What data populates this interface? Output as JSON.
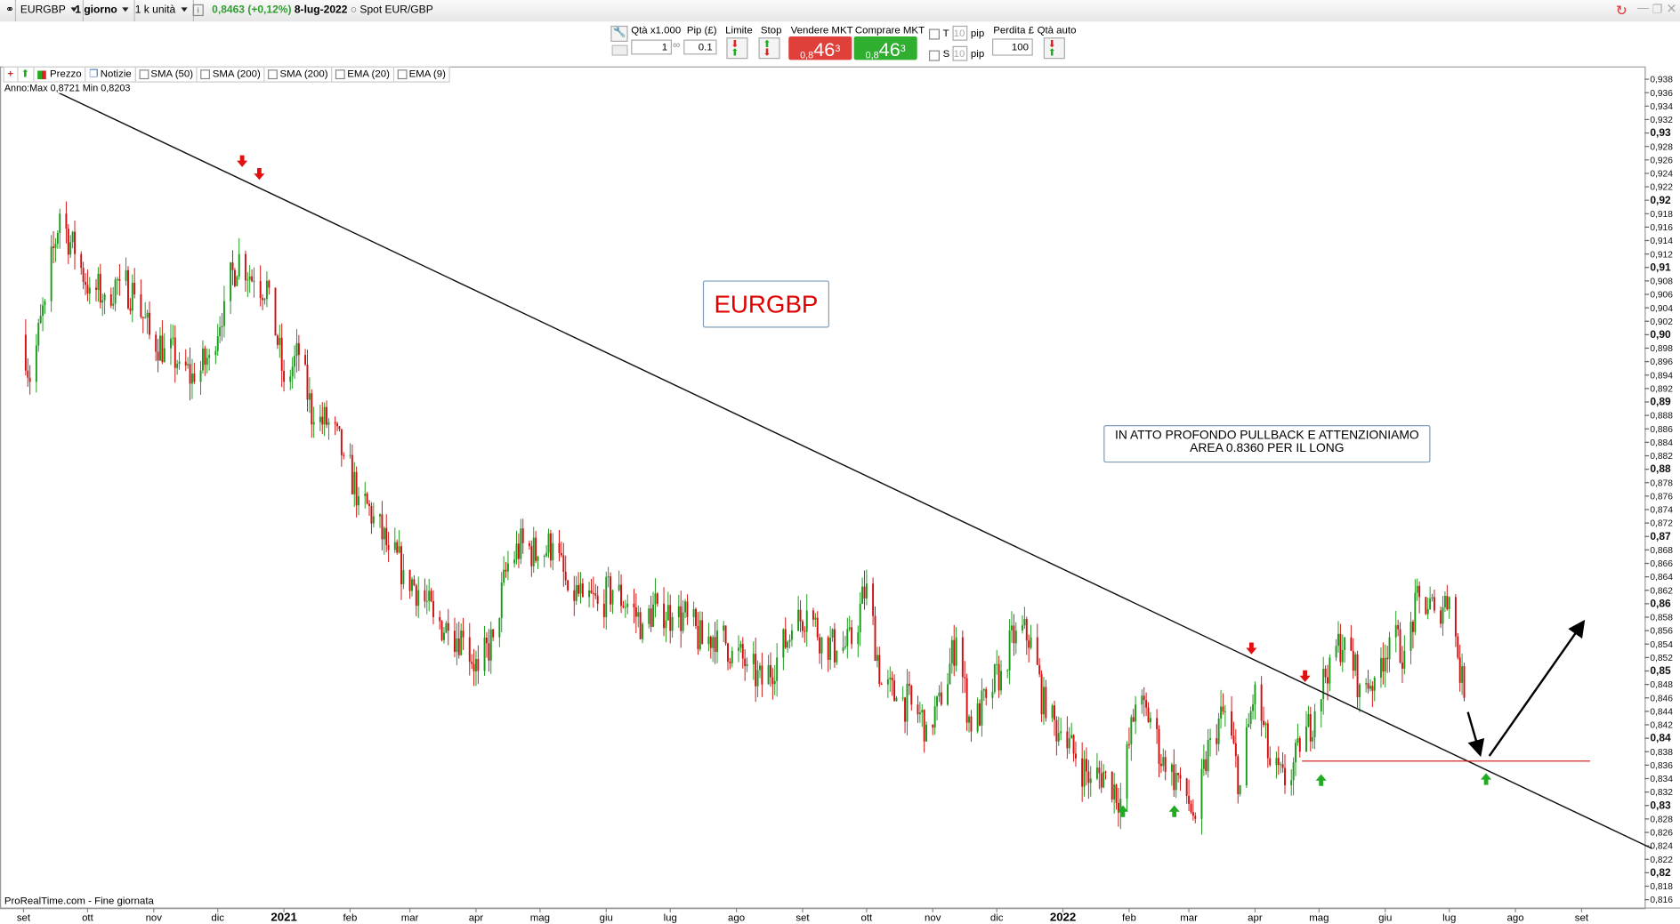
{
  "topbar": {
    "symbol": "EURGBP",
    "timeframe": "1 giorno",
    "units": "1 k unità",
    "last_price": "0,8463 (+0,12%)",
    "date": "8-lug-2022",
    "instrument": "Spot EUR/GBP",
    "price_color": "#2e9e2e"
  },
  "order_panel": {
    "qty_label": "Qtà x1.000",
    "qty_value": "1",
    "pip_label": "Pip (£)",
    "pip_value": "0.1",
    "limit_label": "Limite",
    "stop_label": "Stop",
    "sell_label": "Vendere MKT",
    "buy_label": "Comprare MKT",
    "sell_price": {
      "prefix": "0,8",
      "big": "46",
      "sup": "3"
    },
    "buy_price": {
      "prefix": "0,8",
      "big": "46",
      "sup": "3"
    },
    "t_label": "T",
    "t_value": "10",
    "t_unit": "pip",
    "s_label": "S",
    "s_value": "10",
    "s_unit": "pip",
    "loss_label": "Perdita £",
    "loss_value": "100",
    "auto_qty_label": "Qtà auto",
    "sell_color": "#e0403a",
    "buy_color": "#2fae2f"
  },
  "indicators": [
    {
      "label": "Prezzo"
    },
    {
      "label": "Notizie"
    },
    {
      "label": "SMA (50)"
    },
    {
      "label": "SMA (200)"
    },
    {
      "label": "SMA (200)"
    },
    {
      "label": "EMA (20)"
    },
    {
      "label": "EMA (9)"
    }
  ],
  "year_range": "Anno:Max 0,8721 Min 0,8203",
  "footer_source": "ProRealTime.com - Fine giornata",
  "annotations": {
    "title": "EURGBP",
    "comment_line1": "IN ATTO PROFONDO PULLBACK E ATTENZIONIAMO",
    "comment_line2": "AREA 0.8360 PER IL LONG",
    "support_level": 0.8366,
    "title_color": "#e00000"
  },
  "chart_data": {
    "type": "candlestick",
    "ylim": [
      0.816,
      0.94
    ],
    "y_tick_step": 0.002,
    "x_tick_labels": [
      {
        "date": "2020-09-01",
        "label": "set"
      },
      {
        "date": "2020-10-01",
        "label": "ott"
      },
      {
        "date": "2020-11-01",
        "label": "nov"
      },
      {
        "date": "2020-12-01",
        "label": "dic"
      },
      {
        "date": "2021-01-01",
        "label": "2021",
        "bold": true
      },
      {
        "date": "2021-02-01",
        "label": "feb"
      },
      {
        "date": "2021-03-01",
        "label": "mar"
      },
      {
        "date": "2021-04-01",
        "label": "apr"
      },
      {
        "date": "2021-05-01",
        "label": "mag"
      },
      {
        "date": "2021-06-01",
        "label": "giu"
      },
      {
        "date": "2021-07-01",
        "label": "lug"
      },
      {
        "date": "2021-08-01",
        "label": "ago"
      },
      {
        "date": "2021-09-01",
        "label": "set"
      },
      {
        "date": "2021-10-01",
        "label": "ott"
      },
      {
        "date": "2021-11-01",
        "label": "nov"
      },
      {
        "date": "2021-12-01",
        "label": "dic"
      },
      {
        "date": "2022-01-01",
        "label": "2022",
        "bold": true
      },
      {
        "date": "2022-02-01",
        "label": "feb"
      },
      {
        "date": "2022-03-01",
        "label": "mar"
      },
      {
        "date": "2022-04-01",
        "label": "apr"
      },
      {
        "date": "2022-05-01",
        "label": "mag"
      },
      {
        "date": "2022-06-01",
        "label": "giu"
      },
      {
        "date": "2022-07-01",
        "label": "lug"
      },
      {
        "date": "2022-08-01",
        "label": "ago"
      },
      {
        "date": "2022-09-01",
        "label": "set"
      }
    ],
    "up_color": "#1a9a1a",
    "down_color": "#d01010",
    "weekly_closes": [
      [
        "2020-09-01",
        0.9
      ],
      [
        "2020-09-04",
        0.893
      ],
      [
        "2020-09-11",
        0.905
      ],
      [
        "2020-09-18",
        0.918
      ],
      [
        "2020-09-25",
        0.912
      ],
      [
        "2020-10-02",
        0.907
      ],
      [
        "2020-10-09",
        0.906
      ],
      [
        "2020-10-16",
        0.908
      ],
      [
        "2020-10-23",
        0.906
      ],
      [
        "2020-10-30",
        0.9
      ],
      [
        "2020-11-06",
        0.898
      ],
      [
        "2020-11-13",
        0.896
      ],
      [
        "2020-11-20",
        0.893
      ],
      [
        "2020-11-27",
        0.897
      ],
      [
        "2020-12-04",
        0.905
      ],
      [
        "2020-12-11",
        0.912
      ],
      [
        "2020-12-18",
        0.908
      ],
      [
        "2020-12-25",
        0.907
      ],
      [
        "2021-01-01",
        0.893
      ],
      [
        "2021-01-08",
        0.897
      ],
      [
        "2021-01-15",
        0.887
      ],
      [
        "2021-01-22",
        0.887
      ],
      [
        "2021-01-29",
        0.882
      ],
      [
        "2021-02-05",
        0.876
      ],
      [
        "2021-02-12",
        0.873
      ],
      [
        "2021-02-19",
        0.868
      ],
      [
        "2021-02-26",
        0.865
      ],
      [
        "2021-03-05",
        0.862
      ],
      [
        "2021-03-12",
        0.858
      ],
      [
        "2021-03-19",
        0.856
      ],
      [
        "2021-03-26",
        0.855
      ],
      [
        "2021-04-02",
        0.85
      ],
      [
        "2021-04-09",
        0.855
      ],
      [
        "2021-04-16",
        0.866
      ],
      [
        "2021-04-23",
        0.869
      ],
      [
        "2021-04-30",
        0.867
      ],
      [
        "2021-05-07",
        0.869
      ],
      [
        "2021-05-14",
        0.862
      ],
      [
        "2021-05-21",
        0.861
      ],
      [
        "2021-05-28",
        0.86
      ],
      [
        "2021-06-04",
        0.862
      ],
      [
        "2021-06-11",
        0.86
      ],
      [
        "2021-06-18",
        0.857
      ],
      [
        "2021-06-25",
        0.86
      ],
      [
        "2021-07-02",
        0.858
      ],
      [
        "2021-07-09",
        0.858
      ],
      [
        "2021-07-16",
        0.854
      ],
      [
        "2021-07-23",
        0.856
      ],
      [
        "2021-07-30",
        0.853
      ],
      [
        "2021-08-06",
        0.851
      ],
      [
        "2021-08-13",
        0.848
      ],
      [
        "2021-08-20",
        0.852
      ],
      [
        "2021-08-27",
        0.856
      ],
      [
        "2021-09-03",
        0.859
      ],
      [
        "2021-09-10",
        0.855
      ],
      [
        "2021-09-17",
        0.853
      ],
      [
        "2021-09-24",
        0.854
      ],
      [
        "2021-10-01",
        0.863
      ],
      [
        "2021-10-08",
        0.848
      ],
      [
        "2021-10-15",
        0.846
      ],
      [
        "2021-10-22",
        0.845
      ],
      [
        "2021-10-29",
        0.842
      ],
      [
        "2021-11-05",
        0.845
      ],
      [
        "2021-11-12",
        0.855
      ],
      [
        "2021-11-19",
        0.841
      ],
      [
        "2021-11-26",
        0.846
      ],
      [
        "2021-12-03",
        0.85
      ],
      [
        "2021-12-10",
        0.856
      ],
      [
        "2021-12-17",
        0.855
      ],
      [
        "2021-12-24",
        0.843
      ],
      [
        "2021-12-31",
        0.841
      ],
      [
        "2022-01-07",
        0.837
      ],
      [
        "2022-01-14",
        0.834
      ],
      [
        "2022-01-21",
        0.835
      ],
      [
        "2022-01-28",
        0.831
      ],
      [
        "2022-02-04",
        0.845
      ],
      [
        "2022-02-11",
        0.843
      ],
      [
        "2022-02-18",
        0.835
      ],
      [
        "2022-02-25",
        0.834
      ],
      [
        "2022-03-04",
        0.828
      ],
      [
        "2022-03-11",
        0.84
      ],
      [
        "2022-03-18",
        0.844
      ],
      [
        "2022-03-25",
        0.833
      ],
      [
        "2022-04-01",
        0.848
      ],
      [
        "2022-04-08",
        0.836
      ],
      [
        "2022-04-15",
        0.833
      ],
      [
        "2022-04-22",
        0.838
      ],
      [
        "2022-04-29",
        0.844
      ],
      [
        "2022-05-06",
        0.852
      ],
      [
        "2022-05-13",
        0.855
      ],
      [
        "2022-05-20",
        0.848
      ],
      [
        "2022-05-27",
        0.849
      ],
      [
        "2022-06-03",
        0.855
      ],
      [
        "2022-06-10",
        0.853
      ],
      [
        "2022-06-17",
        0.861
      ],
      [
        "2022-06-24",
        0.859
      ],
      [
        "2022-07-01",
        0.861
      ],
      [
        "2022-07-08",
        0.846
      ]
    ],
    "trendline": {
      "start": [
        "2020-09-08",
        0.9374
      ],
      "end": [
        "2022-10-04",
        0.8236
      ]
    },
    "support_line": {
      "start": "2022-04-23",
      "end": "2022-09-05",
      "price": 0.8366
    }
  }
}
